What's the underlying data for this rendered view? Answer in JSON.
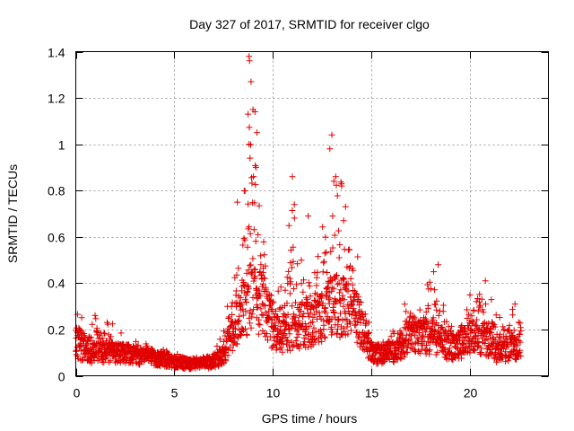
{
  "chart_data": {
    "type": "scatter",
    "title": "Day 327 of 2017, SRMTID for receiver clgo",
    "xlabel": "GPS time / hours",
    "ylabel": "SRMTID / TECUs",
    "xlim": [
      0,
      24
    ],
    "ylim": [
      0,
      1.4
    ],
    "x_ticks": [
      0,
      5,
      10,
      15,
      20
    ],
    "x_tick_labels": [
      "0",
      "5",
      "10",
      "15",
      "20"
    ],
    "y_ticks": [
      0,
      0.2,
      0.4,
      0.6,
      0.8,
      1,
      1.2,
      1.4
    ],
    "y_tick_labels": [
      "0",
      "0.2",
      "0.4",
      "0.6",
      "0.8",
      "1",
      "1.2",
      "1.4"
    ],
    "grid": true,
    "marker": "plus",
    "color": "#e00000",
    "data_coverage_hours": [
      0,
      22.6
    ],
    "profile_hours": [
      0,
      0.5,
      1,
      2,
      3,
      4,
      5,
      6,
      7,
      7.5,
      8,
      8.5,
      9,
      9.5,
      10,
      10.5,
      11,
      11.5,
      12,
      12.5,
      13,
      13.5,
      14,
      14.5,
      15,
      15.5,
      16,
      16.5,
      17,
      17.5,
      18,
      18.5,
      19,
      19.5,
      20,
      20.5,
      21,
      21.5,
      22,
      22.6
    ],
    "profile_typical": [
      0.14,
      0.1,
      0.1,
      0.1,
      0.09,
      0.08,
      0.06,
      0.05,
      0.06,
      0.09,
      0.2,
      0.3,
      0.35,
      0.3,
      0.2,
      0.18,
      0.2,
      0.22,
      0.22,
      0.25,
      0.3,
      0.3,
      0.28,
      0.22,
      0.1,
      0.09,
      0.1,
      0.12,
      0.18,
      0.17,
      0.17,
      0.15,
      0.12,
      0.13,
      0.16,
      0.17,
      0.15,
      0.09,
      0.12,
      0.13
    ],
    "profile_upper": [
      0.3,
      0.22,
      0.3,
      0.22,
      0.15,
      0.13,
      0.1,
      0.09,
      0.1,
      0.2,
      0.5,
      0.8,
      1.38,
      0.6,
      0.35,
      0.4,
      0.86,
      0.65,
      0.55,
      0.7,
      1.05,
      0.86,
      0.65,
      0.45,
      0.17,
      0.18,
      0.22,
      0.3,
      0.35,
      0.32,
      0.45,
      0.48,
      0.35,
      0.3,
      0.37,
      0.41,
      0.36,
      0.25,
      0.31,
      0.3
    ],
    "highlighted_points": [
      {
        "x": 8.8,
        "y": 1.38
      },
      {
        "x": 8.82,
        "y": 1.36
      },
      {
        "x": 8.9,
        "y": 1.27
      },
      {
        "x": 9.0,
        "y": 1.15
      },
      {
        "x": 8.75,
        "y": 1.13
      },
      {
        "x": 9.1,
        "y": 1.14
      },
      {
        "x": 8.8,
        "y": 1.0
      },
      {
        "x": 9.2,
        "y": 1.05
      },
      {
        "x": 8.85,
        "y": 0.94
      },
      {
        "x": 9.15,
        "y": 0.9
      },
      {
        "x": 11.0,
        "y": 0.86
      },
      {
        "x": 13.0,
        "y": 1.04
      },
      {
        "x": 12.9,
        "y": 0.98
      },
      {
        "x": 13.2,
        "y": 0.86
      },
      {
        "x": 13.1,
        "y": 0.84
      },
      {
        "x": 13.7,
        "y": 0.73
      },
      {
        "x": 13.5,
        "y": 0.82
      },
      {
        "x": 13.6,
        "y": 0.67
      },
      {
        "x": 11.1,
        "y": 0.74
      },
      {
        "x": 8.2,
        "y": 0.75
      },
      {
        "x": 11.8,
        "y": 0.69
      },
      {
        "x": 18.4,
        "y": 0.48
      },
      {
        "x": 20.8,
        "y": 0.41
      },
      {
        "x": 22.3,
        "y": 0.31
      }
    ]
  }
}
